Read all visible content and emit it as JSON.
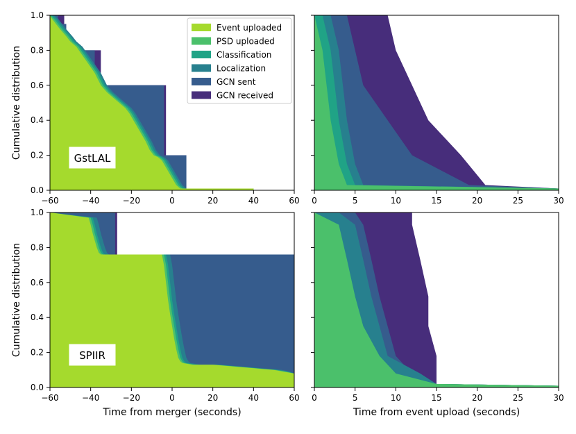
{
  "chart_data": {
    "type": "area",
    "series_names": [
      "Event uploaded",
      "PSD uploaded",
      "Classification",
      "Localization",
      "GCN sent",
      "GCN received"
    ],
    "colors": [
      "#a5da2d",
      "#4bc06b",
      "#20a386",
      "#27808e",
      "#365c8d",
      "#472d7b"
    ],
    "ylabel": "Cumulative distribution",
    "legend": "top-right of top-left panel",
    "y_ticks": [
      "0.0",
      "0.2",
      "0.4",
      "0.6",
      "0.8",
      "1.0"
    ],
    "panels": [
      {
        "label": "GstLAL",
        "xlim": [
          -60,
          60
        ],
        "ylim": [
          0,
          1
        ],
        "x_ticks": [
          "−60",
          "−40",
          "−20",
          "0",
          "20",
          "40",
          "60"
        ],
        "xlabel": "",
        "series": [
          {
            "name": "Event uploaded",
            "x": [
              -60,
              -59,
              -57,
              -55,
              -52,
              -50,
              -47,
              -44,
              -41,
              -38,
              -35,
              -32,
              -29,
              -26,
              -23,
              -21,
              -19,
              -17,
              -15,
              -13,
              -11,
              -9,
              -7,
              -5,
              -4,
              -3,
              -2,
              -1,
              0,
              1,
              2,
              3,
              4,
              40
            ],
            "y": [
              1.0,
              0.98,
              0.95,
              0.92,
              0.88,
              0.85,
              0.82,
              0.77,
              0.72,
              0.67,
              0.6,
              0.56,
              0.53,
              0.5,
              0.47,
              0.44,
              0.4,
              0.36,
              0.32,
              0.28,
              0.23,
              0.2,
              0.19,
              0.17,
              0.15,
              0.13,
              0.11,
              0.09,
              0.07,
              0.05,
              0.03,
              0.02,
              0.01,
              0.01
            ]
          },
          {
            "name": "PSD uploaded",
            "x": [
              -60,
              -58,
              -56,
              -54,
              -51,
              -49,
              -46,
              -43,
              -40,
              -37,
              -34,
              -31,
              -28,
              -25,
              -22,
              -20,
              -18,
              -16,
              -14,
              -12,
              -10,
              -8,
              -6,
              -4,
              -3,
              -2,
              -1,
              0,
              1,
              2,
              3,
              4,
              5,
              40
            ],
            "y": [
              1.0,
              0.98,
              0.95,
              0.92,
              0.88,
              0.85,
              0.82,
              0.77,
              0.72,
              0.67,
              0.6,
              0.56,
              0.53,
              0.5,
              0.47,
              0.44,
              0.4,
              0.36,
              0.32,
              0.28,
              0.23,
              0.2,
              0.19,
              0.17,
              0.15,
              0.13,
              0.11,
              0.09,
              0.07,
              0.05,
              0.03,
              0.02,
              0.01,
              0.01
            ]
          },
          {
            "name": "Classification",
            "x": [
              -59,
              -57,
              -55,
              -53,
              -50,
              -48,
              -45,
              -42,
              -39,
              -36,
              -33,
              -30,
              -27,
              -24,
              -21,
              -19,
              -17,
              -15,
              -13,
              -11,
              -9,
              -7,
              -5,
              -3,
              -2,
              -1,
              0,
              1,
              2,
              3,
              4,
              5,
              6,
              40
            ],
            "y": [
              1.0,
              0.98,
              0.95,
              0.92,
              0.88,
              0.85,
              0.82,
              0.77,
              0.72,
              0.67,
              0.6,
              0.56,
              0.53,
              0.5,
              0.47,
              0.44,
              0.4,
              0.36,
              0.32,
              0.28,
              0.23,
              0.2,
              0.19,
              0.17,
              0.15,
              0.13,
              0.11,
              0.09,
              0.07,
              0.05,
              0.03,
              0.02,
              0.01,
              0.01
            ]
          },
          {
            "name": "Localization",
            "x": [
              -58,
              -56,
              -54,
              -52,
              -49,
              -47,
              -44,
              -41,
              -38,
              -35,
              -32,
              -29,
              -26,
              -23,
              -20,
              -18,
              -16,
              -14,
              -12,
              -10,
              -8,
              -6,
              -4,
              -2,
              -1,
              0,
              1,
              2,
              3,
              4,
              5,
              6,
              7,
              40
            ],
            "y": [
              1.0,
              0.98,
              0.95,
              0.92,
              0.88,
              0.85,
              0.82,
              0.77,
              0.72,
              0.67,
              0.6,
              0.56,
              0.53,
              0.5,
              0.47,
              0.44,
              0.4,
              0.36,
              0.32,
              0.28,
              0.23,
              0.2,
              0.19,
              0.17,
              0.15,
              0.13,
              0.11,
              0.09,
              0.07,
              0.05,
              0.03,
              0.02,
              0.01,
              0.01
            ]
          },
          {
            "name": "GCN sent",
            "x": [
              -56,
              -56,
              -52,
              -52,
              -38,
              -38,
              -35,
              -35,
              -4,
              -4,
              7,
              7,
              40
            ],
            "y": [
              1.0,
              0.95,
              0.95,
              0.8,
              0.8,
              0.6,
              0.6,
              0.6,
              0.6,
              0.2,
              0.2,
              0.01,
              0.01
            ]
          },
          {
            "name": "GCN received",
            "x": [
              -53,
              -53,
              -52,
              -52,
              -35,
              -35,
              -34,
              -34,
              -3,
              -3,
              7,
              7,
              40
            ],
            "y": [
              1.0,
              0.95,
              0.95,
              0.8,
              0.8,
              0.6,
              0.6,
              0.6,
              0.6,
              0.2,
              0.2,
              0.01,
              0.01
            ]
          }
        ]
      },
      {
        "label": "",
        "xlim": [
          0,
          30
        ],
        "ylim": [
          0,
          1
        ],
        "x_ticks": [
          "0",
          "5",
          "10",
          "15",
          "20",
          "25",
          "30"
        ],
        "xlabel": "",
        "series": [
          {
            "name": "PSD uploaded",
            "x": [
              0,
              1,
              2,
              3,
              4,
              30
            ],
            "y": [
              1.0,
              0.8,
              0.4,
              0.15,
              0.03,
              0.01
            ]
          },
          {
            "name": "Classification",
            "x": [
              1,
              2,
              3,
              4,
              5,
              30
            ],
            "y": [
              1.0,
              0.8,
              0.4,
              0.15,
              0.03,
              0.01
            ]
          },
          {
            "name": "Localization",
            "x": [
              2,
              3,
              4,
              5,
              6,
              30
            ],
            "y": [
              1.0,
              0.8,
              0.4,
              0.15,
              0.03,
              0.01
            ]
          },
          {
            "name": "GCN sent",
            "x": [
              4,
              5,
              6,
              9,
              12,
              19,
              30
            ],
            "y": [
              1.0,
              0.8,
              0.6,
              0.4,
              0.2,
              0.03,
              0.01
            ]
          },
          {
            "name": "GCN received",
            "x": [
              9,
              10,
              12,
              14,
              18,
              21,
              30
            ],
            "y": [
              1.0,
              0.8,
              0.6,
              0.4,
              0.2,
              0.03,
              0.01
            ]
          }
        ]
      },
      {
        "label": "SPIIR",
        "xlim": [
          -60,
          60
        ],
        "ylim": [
          0,
          1
        ],
        "x_ticks": [
          "−60",
          "−40",
          "−20",
          "0",
          "20",
          "40",
          "60"
        ],
        "xlabel": "Time from merger (seconds)",
        "series": [
          {
            "name": "Event uploaded",
            "x": [
              -60,
              -41,
              -40,
              -39,
              -38,
              -37,
              -36,
              -35,
              -5,
              -4,
              -3,
              -2,
              -1,
              0,
              1,
              2,
              3,
              4,
              5,
              10,
              20,
              30,
              40,
              50,
              55,
              60
            ],
            "y": [
              1.0,
              0.97,
              0.93,
              0.88,
              0.84,
              0.8,
              0.77,
              0.76,
              0.76,
              0.7,
              0.6,
              0.5,
              0.42,
              0.35,
              0.28,
              0.22,
              0.17,
              0.15,
              0.14,
              0.13,
              0.13,
              0.12,
              0.11,
              0.1,
              0.09,
              0.08
            ]
          },
          {
            "name": "PSD uploaded",
            "x": [
              -60,
              -40,
              -39,
              -38,
              -37,
              -36,
              -35,
              -34,
              -4,
              -3,
              -2,
              -1,
              0,
              1,
              2,
              3,
              4,
              5,
              6,
              11,
              21,
              31,
              41,
              51,
              56,
              60
            ],
            "y": [
              1.0,
              0.97,
              0.93,
              0.88,
              0.84,
              0.8,
              0.77,
              0.76,
              0.76,
              0.7,
              0.6,
              0.5,
              0.42,
              0.35,
              0.28,
              0.22,
              0.17,
              0.15,
              0.14,
              0.13,
              0.13,
              0.12,
              0.11,
              0.1,
              0.09,
              0.08
            ]
          },
          {
            "name": "Classification",
            "x": [
              -60,
              -39,
              -38,
              -37,
              -36,
              -35,
              -34,
              -33,
              -3,
              -2,
              -1,
              0,
              1,
              2,
              3,
              4,
              5,
              6,
              7,
              12,
              22,
              32,
              42,
              52,
              57,
              60
            ],
            "y": [
              1.0,
              0.97,
              0.93,
              0.88,
              0.84,
              0.8,
              0.77,
              0.76,
              0.76,
              0.7,
              0.6,
              0.5,
              0.42,
              0.35,
              0.28,
              0.22,
              0.17,
              0.15,
              0.14,
              0.13,
              0.13,
              0.12,
              0.11,
              0.1,
              0.09,
              0.08
            ]
          },
          {
            "name": "Localization",
            "x": [
              -60,
              -37,
              -36,
              -35,
              -34,
              -33,
              -32,
              -31,
              -1,
              0,
              1,
              2,
              3,
              4,
              5,
              6,
              7,
              8,
              9,
              14,
              24,
              34,
              44,
              54,
              58,
              60
            ],
            "y": [
              1.0,
              0.97,
              0.93,
              0.88,
              0.84,
              0.8,
              0.77,
              0.76,
              0.76,
              0.7,
              0.6,
              0.5,
              0.42,
              0.35,
              0.28,
              0.22,
              0.17,
              0.15,
              0.14,
              0.13,
              0.13,
              0.12,
              0.11,
              0.1,
              0.09,
              0.08
            ]
          },
          {
            "name": "GCN sent",
            "x": [
              -60,
              -28,
              -28,
              60
            ],
            "y": [
              1.0,
              1.0,
              0.76,
              0.76
            ]
          },
          {
            "name": "GCN received",
            "x": [
              -60,
              -27,
              -27,
              60
            ],
            "y": [
              1.0,
              1.0,
              0.76,
              0.76
            ]
          }
        ]
      },
      {
        "label": "",
        "xlim": [
          0,
          30
        ],
        "ylim": [
          0,
          1
        ],
        "x_ticks": [
          "0",
          "5",
          "10",
          "15",
          "20",
          "25",
          "30"
        ],
        "xlabel": "Time from event upload (seconds)",
        "series": [
          {
            "name": "PSD uploaded",
            "x": [
              0,
              3,
              4,
              5,
              6,
              8,
              10,
              15,
              30
            ],
            "y": [
              1.0,
              0.93,
              0.73,
              0.52,
              0.35,
              0.18,
              0.08,
              0.02,
              0.01
            ]
          },
          {
            "name": "Classification",
            "x": [
              0,
              3,
              4,
              5,
              6,
              8,
              10,
              15,
              30
            ],
            "y": [
              1.0,
              0.93,
              0.73,
              0.52,
              0.35,
              0.18,
              0.08,
              0.02,
              0.01
            ]
          },
          {
            "name": "Localization",
            "x": [
              3,
              5,
              6,
              7,
              8,
              9,
              13,
              15,
              30
            ],
            "y": [
              1.0,
              0.93,
              0.73,
              0.52,
              0.35,
              0.18,
              0.08,
              0.02,
              0.01
            ]
          },
          {
            "name": "GCN sent",
            "x": [
              5,
              6,
              7,
              8,
              9,
              10,
              12,
              15,
              30
            ],
            "y": [
              1.0,
              0.93,
              0.73,
              0.52,
              0.35,
              0.18,
              0.08,
              0.02,
              0.01
            ]
          },
          {
            "name": "GCN received",
            "x": [
              12,
              12,
              13,
              14,
              14,
              15,
              15,
              15,
              30
            ],
            "y": [
              1.0,
              0.93,
              0.73,
              0.52,
              0.35,
              0.18,
              0.08,
              0.02,
              0.01
            ]
          }
        ]
      }
    ]
  }
}
